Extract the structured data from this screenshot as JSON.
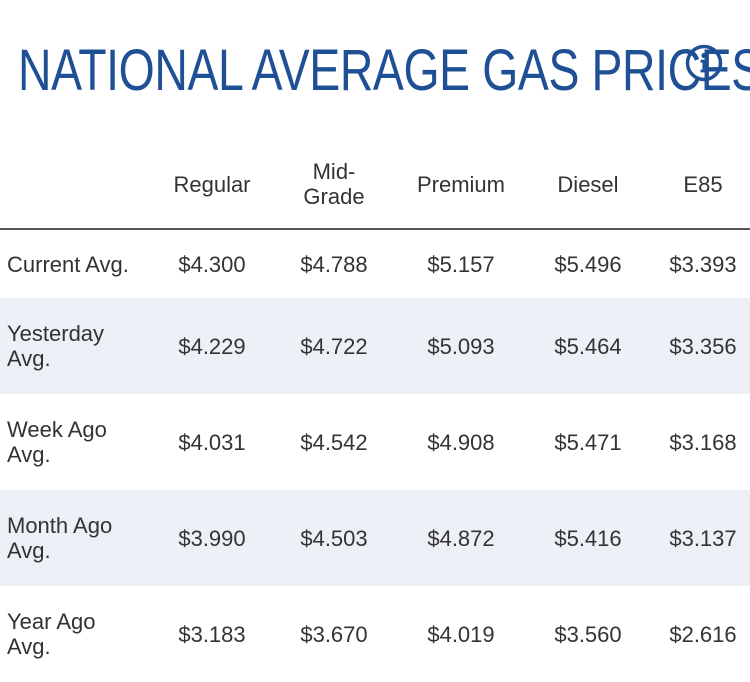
{
  "header": {
    "title": "NATIONAL AVERAGE GAS PRICES",
    "info_icon": "info-icon",
    "accent_color": "#1f5096"
  },
  "table": {
    "columns": [
      "Regular",
      "Mid-\nGrade",
      "Premium",
      "Diesel",
      "E85"
    ],
    "rows": [
      {
        "label": "Current Avg.",
        "values": [
          "$4.300",
          "$4.788",
          "$5.157",
          "$5.496",
          "$3.393"
        ]
      },
      {
        "label": "Yesterday\nAvg.",
        "values": [
          "$4.229",
          "$4.722",
          "$5.093",
          "$5.464",
          "$3.356"
        ]
      },
      {
        "label": "Week Ago\nAvg.",
        "values": [
          "$4.031",
          "$4.542",
          "$4.908",
          "$5.471",
          "$3.168"
        ]
      },
      {
        "label": "Month Ago\nAvg.",
        "values": [
          "$3.990",
          "$4.503",
          "$4.872",
          "$5.416",
          "$3.137"
        ]
      },
      {
        "label": "Year Ago\nAvg.",
        "values": [
          "$3.183",
          "$3.670",
          "$4.019",
          "$3.560",
          "$2.616"
        ]
      }
    ],
    "shaded_row_color": "#edf1f7"
  }
}
